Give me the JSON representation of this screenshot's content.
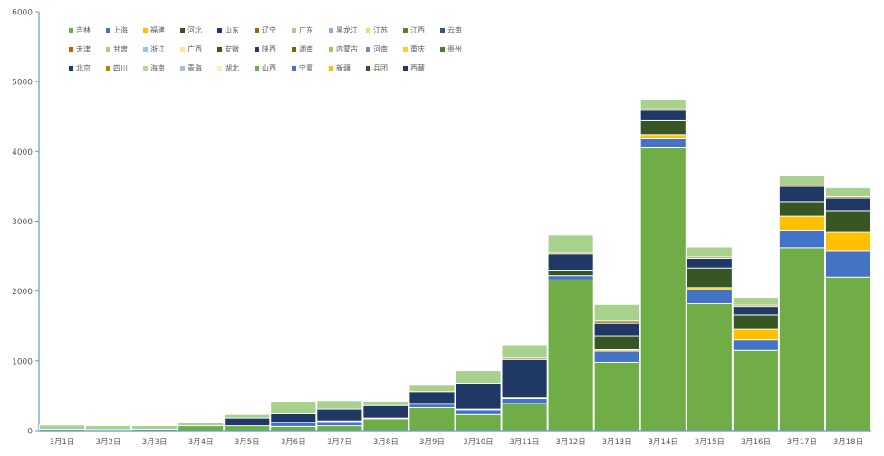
{
  "chart_data": {
    "type": "stacked_bar",
    "ylim": [
      0,
      6000
    ],
    "yticks": [
      0,
      1000,
      2000,
      3000,
      4000,
      5000,
      6000
    ],
    "legend_position": "top-left (inside plot)",
    "categories": [
      "3月1日",
      "3月2日",
      "3月3日",
      "3月4日",
      "3月5日",
      "3月6日",
      "3月7日",
      "3月8日",
      "3月9日",
      "3月10日",
      "3月11日",
      "3月12日",
      "3月13日",
      "3月14日",
      "3月15日",
      "3月16日",
      "3月17日",
      "3月18日"
    ],
    "series": [
      {
        "name": "吉林",
        "color": "#70ad47",
        "values": [
          20,
          15,
          20,
          70,
          70,
          60,
          70,
          170,
          330,
          230,
          390,
          2160,
          980,
          4050,
          1820,
          1150,
          2620,
          2200
        ]
      },
      {
        "name": "上海",
        "color": "#4472c4",
        "values": [
          0,
          0,
          0,
          0,
          0,
          50,
          60,
          0,
          50,
          70,
          70,
          60,
          160,
          130,
          200,
          150,
          250,
          380
        ]
      },
      {
        "name": "福建",
        "color": "#ffc000",
        "values": [
          0,
          0,
          0,
          0,
          0,
          0,
          0,
          0,
          0,
          0,
          0,
          0,
          20,
          60,
          30,
          150,
          200,
          270
        ]
      },
      {
        "name": "河北",
        "color": "#375623",
        "values": [
          0,
          0,
          0,
          0,
          0,
          10,
          10,
          10,
          10,
          10,
          10,
          80,
          200,
          200,
          280,
          210,
          210,
          300
        ]
      },
      {
        "name": "山东",
        "color": "#1f3864",
        "values": [
          0,
          0,
          0,
          0,
          110,
          120,
          170,
          180,
          170,
          370,
          550,
          230,
          180,
          150,
          140,
          120,
          220,
          180
        ]
      },
      {
        "name": "辽宁",
        "color": "#9c6500",
        "values": [
          0,
          0,
          0,
          0,
          0,
          0,
          0,
          0,
          0,
          0,
          20,
          20,
          30,
          20,
          20,
          20,
          20,
          20
        ]
      },
      {
        "name": "广东",
        "color": "#a9d18e",
        "values": [
          60,
          55,
          50,
          50,
          50,
          180,
          120,
          60,
          90,
          180,
          190,
          250,
          240,
          130,
          140,
          110,
          140,
          130
        ]
      },
      {
        "name": "黑龙江",
        "color": "#8faadc",
        "values": [
          0,
          0,
          0,
          0,
          0,
          0,
          0,
          0,
          0,
          0,
          0,
          0,
          0,
          0,
          0,
          0,
          0,
          0
        ]
      },
      {
        "name": "江苏",
        "color": "#ffd966",
        "values": [
          0,
          0,
          0,
          0,
          0,
          0,
          0,
          0,
          0,
          0,
          0,
          0,
          0,
          0,
          0,
          0,
          0,
          0
        ]
      },
      {
        "name": "江西",
        "color": "#548235",
        "values": [
          0,
          0,
          0,
          0,
          0,
          0,
          0,
          0,
          0,
          0,
          0,
          0,
          0,
          0,
          0,
          0,
          0,
          0
        ]
      },
      {
        "name": "云南",
        "color": "#2f5597",
        "values": [
          0,
          0,
          0,
          0,
          0,
          0,
          0,
          0,
          0,
          0,
          0,
          0,
          0,
          0,
          0,
          0,
          0,
          0
        ]
      },
      {
        "name": "天津",
        "color": "#c55a11",
        "values": [
          0,
          0,
          0,
          0,
          0,
          0,
          0,
          0,
          0,
          0,
          0,
          0,
          0,
          0,
          0,
          0,
          0,
          0
        ]
      },
      {
        "name": "甘肃",
        "color": "#a9d18e",
        "values": [
          0,
          0,
          0,
          0,
          0,
          0,
          0,
          0,
          0,
          0,
          0,
          0,
          0,
          0,
          0,
          0,
          0,
          0
        ]
      },
      {
        "name": "浙江",
        "color": "#9dc3e6",
        "values": [
          0,
          0,
          0,
          0,
          0,
          0,
          0,
          0,
          0,
          0,
          0,
          0,
          0,
          0,
          0,
          0,
          0,
          0
        ]
      },
      {
        "name": "广西",
        "color": "#ffe699",
        "values": [
          0,
          0,
          0,
          0,
          0,
          0,
          0,
          0,
          0,
          0,
          0,
          0,
          0,
          0,
          0,
          0,
          0,
          0
        ]
      },
      {
        "name": "安徽",
        "color": "#385723",
        "values": [
          0,
          0,
          0,
          0,
          0,
          0,
          0,
          0,
          0,
          0,
          0,
          0,
          0,
          0,
          0,
          0,
          0,
          0
        ]
      },
      {
        "name": "陕西",
        "color": "#203864",
        "values": [
          0,
          0,
          0,
          0,
          0,
          0,
          0,
          0,
          0,
          0,
          0,
          0,
          0,
          0,
          0,
          0,
          0,
          0
        ]
      },
      {
        "name": "湖南",
        "color": "#806000",
        "values": [
          0,
          0,
          0,
          0,
          0,
          0,
          0,
          0,
          0,
          0,
          0,
          0,
          0,
          0,
          0,
          0,
          0,
          0
        ]
      },
      {
        "name": "内蒙古",
        "color": "#92d050",
        "values": [
          0,
          0,
          0,
          0,
          0,
          0,
          0,
          0,
          0,
          0,
          0,
          0,
          0,
          0,
          0,
          0,
          0,
          0
        ]
      },
      {
        "name": "河南",
        "color": "#6b8ec7",
        "values": [
          0,
          0,
          0,
          0,
          0,
          0,
          0,
          0,
          0,
          0,
          0,
          0,
          0,
          0,
          0,
          0,
          0,
          0
        ]
      },
      {
        "name": "重庆",
        "color": "#ffcc33",
        "values": [
          0,
          0,
          0,
          0,
          0,
          0,
          0,
          0,
          0,
          0,
          0,
          0,
          0,
          0,
          0,
          0,
          0,
          0
        ]
      },
      {
        "name": "贵州",
        "color": "#4e7a2e",
        "values": [
          0,
          0,
          0,
          0,
          0,
          0,
          0,
          0,
          0,
          0,
          0,
          0,
          0,
          0,
          0,
          0,
          0,
          0
        ]
      },
      {
        "name": "北京",
        "color": "#1f3a60",
        "values": [
          0,
          0,
          0,
          0,
          0,
          0,
          0,
          0,
          0,
          0,
          0,
          0,
          0,
          0,
          0,
          0,
          0,
          0
        ]
      },
      {
        "name": "四川",
        "color": "#b08900",
        "values": [
          0,
          0,
          0,
          0,
          0,
          0,
          0,
          0,
          0,
          0,
          0,
          0,
          0,
          0,
          0,
          0,
          0,
          0
        ]
      },
      {
        "name": "海南",
        "color": "#b4d79b",
        "values": [
          0,
          0,
          0,
          0,
          0,
          0,
          0,
          0,
          0,
          0,
          0,
          0,
          0,
          0,
          0,
          0,
          0,
          0
        ]
      },
      {
        "name": "青海",
        "color": "#a6bbe0",
        "values": [
          0,
          0,
          0,
          0,
          0,
          0,
          0,
          0,
          0,
          0,
          0,
          0,
          0,
          0,
          0,
          0,
          0,
          0
        ]
      },
      {
        "name": "湖北",
        "color": "#fff2a8",
        "values": [
          0,
          0,
          0,
          0,
          0,
          0,
          0,
          0,
          0,
          0,
          0,
          0,
          0,
          0,
          0,
          0,
          0,
          0
        ]
      },
      {
        "name": "山西",
        "color": "#70ad47",
        "values": [
          0,
          0,
          0,
          0,
          0,
          0,
          0,
          0,
          0,
          0,
          0,
          0,
          0,
          0,
          0,
          0,
          0,
          0
        ]
      },
      {
        "name": "宁夏",
        "color": "#4472c4",
        "values": [
          0,
          0,
          0,
          0,
          0,
          0,
          0,
          0,
          0,
          0,
          0,
          0,
          0,
          0,
          0,
          0,
          0,
          0
        ]
      },
      {
        "name": "新疆",
        "color": "#ffc000",
        "values": [
          0,
          0,
          0,
          0,
          0,
          0,
          0,
          0,
          0,
          0,
          0,
          0,
          0,
          0,
          0,
          0,
          0,
          0
        ]
      },
      {
        "name": "兵团",
        "color": "#375623",
        "values": [
          0,
          0,
          0,
          0,
          0,
          0,
          0,
          0,
          0,
          0,
          0,
          0,
          0,
          0,
          0,
          0,
          0,
          0
        ]
      },
      {
        "name": "西藏",
        "color": "#1f3864",
        "values": [
          0,
          0,
          0,
          0,
          0,
          0,
          0,
          0,
          0,
          0,
          0,
          0,
          0,
          0,
          0,
          0,
          0,
          0
        ]
      }
    ]
  }
}
